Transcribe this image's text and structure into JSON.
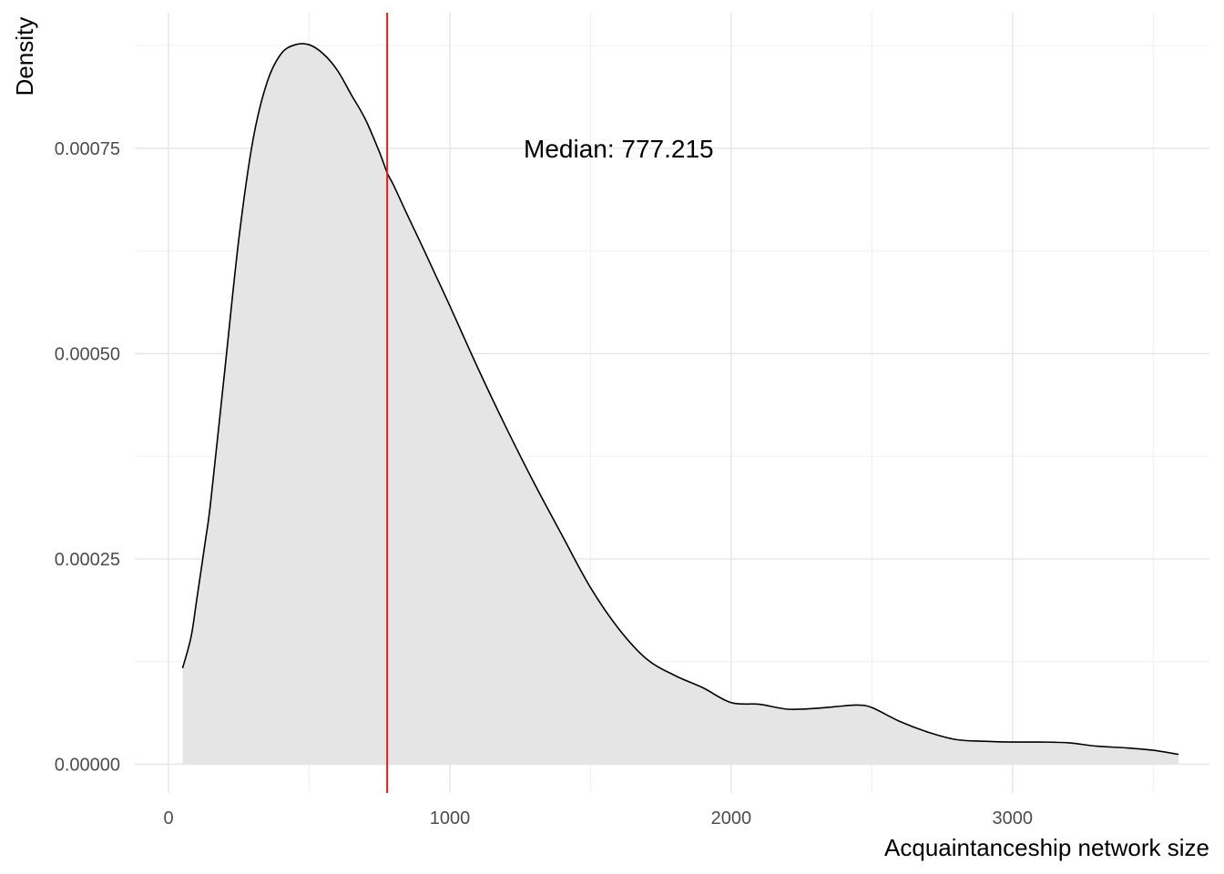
{
  "chart_data": {
    "type": "area",
    "title": "",
    "xlabel": "Acquaintanceship network size",
    "ylabel": "Density",
    "xlim": [
      -120,
      3700
    ],
    "ylim": [
      -3.5e-05,
      0.000915
    ],
    "x_ticks": [
      {
        "value": 0,
        "label": "0"
      },
      {
        "value": 1000,
        "label": "1000"
      },
      {
        "value": 2000,
        "label": "2000"
      },
      {
        "value": 3000,
        "label": "3000"
      }
    ],
    "y_ticks": [
      {
        "value": 0,
        "label": "0.00000"
      },
      {
        "value": 0.00025,
        "label": "0.00025"
      },
      {
        "value": 0.0005,
        "label": "0.00050"
      },
      {
        "value": 0.00075,
        "label": "0.00075"
      }
    ],
    "x_minor": [
      500,
      1500,
      2500,
      3500
    ],
    "y_minor": [
      0.000125,
      0.000375,
      0.000625,
      0.000875
    ],
    "grid": true,
    "series": [
      {
        "x": [
          50,
          80,
          100,
          130,
          150,
          200,
          250,
          300,
          350,
          400,
          450,
          500,
          550,
          600,
          650,
          700,
          750,
          777.215,
          800,
          850,
          900,
          950,
          1000,
          1100,
          1200,
          1300,
          1400,
          1500,
          1600,
          1700,
          1800,
          1900,
          2000,
          2100,
          2200,
          2300,
          2400,
          2450,
          2500,
          2600,
          2700,
          2800,
          2900,
          3000,
          3100,
          3200,
          3300,
          3400,
          3500,
          3590
        ],
        "y": [
          0.000117,
          0.000155,
          0.0002,
          0.00027,
          0.00032,
          0.00048,
          0.00064,
          0.00076,
          0.00083,
          0.000865,
          0.000876,
          0.000876,
          0.000865,
          0.000845,
          0.000815,
          0.000785,
          0.000745,
          0.00072,
          0.000705,
          0.000668,
          0.000632,
          0.000595,
          0.000558,
          0.000482,
          0.00041,
          0.000342,
          0.000278,
          0.000215,
          0.000165,
          0.000128,
          0.000108,
          9.3e-05,
          7.5e-05,
          7.3e-05,
          6.7e-05,
          6.8e-05,
          7.1e-05,
          7.2e-05,
          6.9e-05,
          5.2e-05,
          3.9e-05,
          3e-05,
          2.8e-05,
          2.7e-05,
          2.7e-05,
          2.6e-05,
          2.2e-05,
          2e-05,
          1.7e-05,
          1.2e-05
        ],
        "fill": "#e5e5e5",
        "stroke": "#000000"
      }
    ],
    "annotations": [
      {
        "type": "vline",
        "x": 777.215,
        "color": "#e41a1c"
      },
      {
        "type": "text",
        "text": "Median: 777.215",
        "x": 1600,
        "y": 0.00075
      }
    ]
  }
}
